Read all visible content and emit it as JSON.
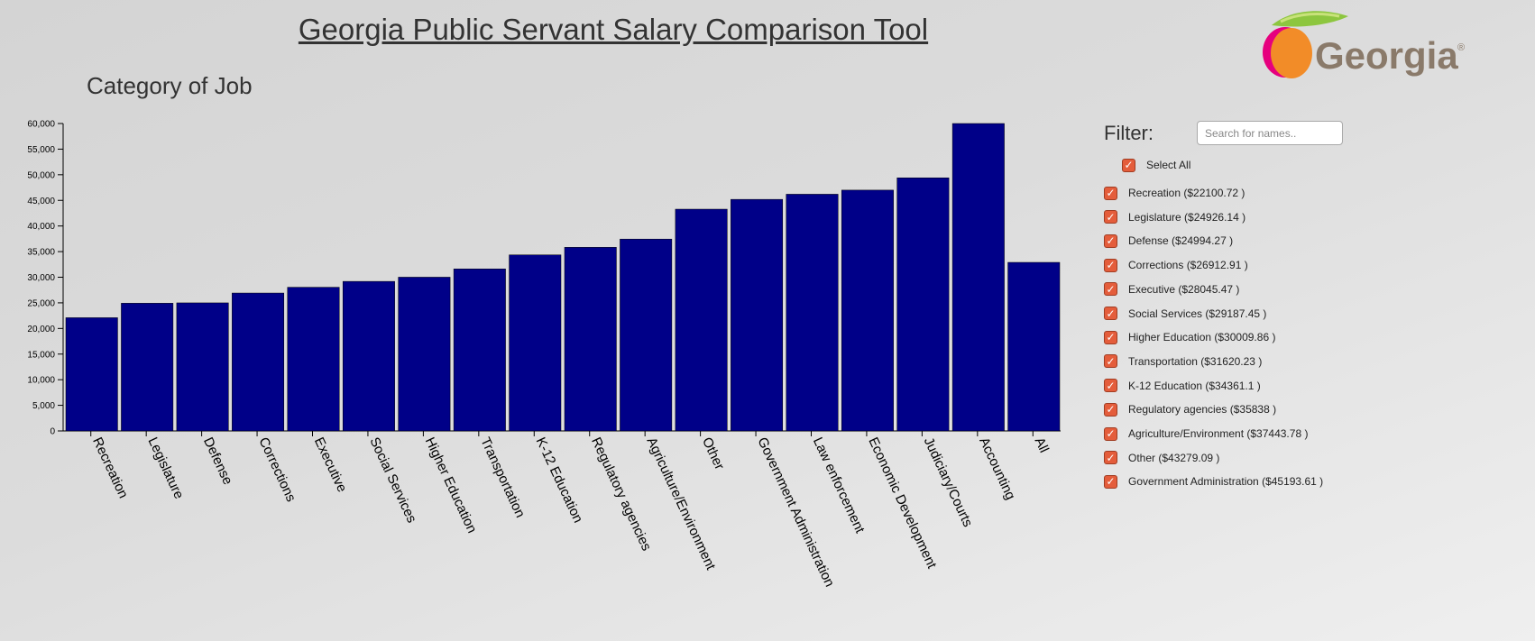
{
  "header": {
    "title": "Georgia Public Servant Salary Comparison Tool",
    "logo_text": "Georgia"
  },
  "chart_heading": "Category of Job",
  "filter": {
    "label": "Filter:",
    "search_placeholder": "Search for names..",
    "select_all_label": "Select All",
    "items": [
      {
        "label": "Recreation ($22100.72 )"
      },
      {
        "label": "Legislature ($24926.14 )"
      },
      {
        "label": "Defense ($24994.27 )"
      },
      {
        "label": "Corrections ($26912.91 )"
      },
      {
        "label": "Executive ($28045.47 )"
      },
      {
        "label": "Social Services ($29187.45 )"
      },
      {
        "label": "Higher Education ($30009.86 )"
      },
      {
        "label": "Transportation ($31620.23 )"
      },
      {
        "label": "K-12 Education ($34361.1 )"
      },
      {
        "label": "Regulatory agencies ($35838 )"
      },
      {
        "label": "Agriculture/Environment ($37443.78 )"
      },
      {
        "label": "Other ($43279.09 )"
      },
      {
        "label": "Government Administration ($45193.61 )"
      }
    ]
  },
  "chart_data": {
    "type": "bar",
    "categories": [
      "Recreation",
      "Legislature",
      "Defense",
      "Corrections",
      "Executive",
      "Social Services",
      "Higher Education",
      "Transportation",
      "K-12 Education",
      "Regulatory agencies",
      "Agriculture/Environment",
      "Other",
      "Government Administration",
      "Law enforcement",
      "Economic Development",
      "Judiciary/Courts",
      "Accounting",
      "All"
    ],
    "values": [
      22100.72,
      24926.14,
      24994.27,
      26912.91,
      28045.47,
      29187.45,
      30009.86,
      31620.23,
      34361.1,
      35838,
      37443.78,
      43279.09,
      45193.61,
      46200,
      47000,
      49400,
      60000,
      32900
    ],
    "ylim": [
      0,
      60000
    ],
    "yticks": [
      0,
      5000,
      10000,
      15000,
      20000,
      25000,
      30000,
      35000,
      40000,
      45000,
      50000,
      55000,
      60000
    ],
    "ytick_labels": [
      "0",
      "5,000",
      "10,000",
      "15,000",
      "20,000",
      "25,000",
      "30,000",
      "35,000",
      "40,000",
      "45,000",
      "50,000",
      "55,000",
      "60,000"
    ],
    "bar_color": "#000088",
    "grid": false
  },
  "colors": {
    "checkbox": "#e45d3b",
    "logo_orange": "#f28c28",
    "logo_pink": "#e6007e",
    "logo_leaf": "#8dc63f",
    "logo_text": "#8a7a6a"
  }
}
